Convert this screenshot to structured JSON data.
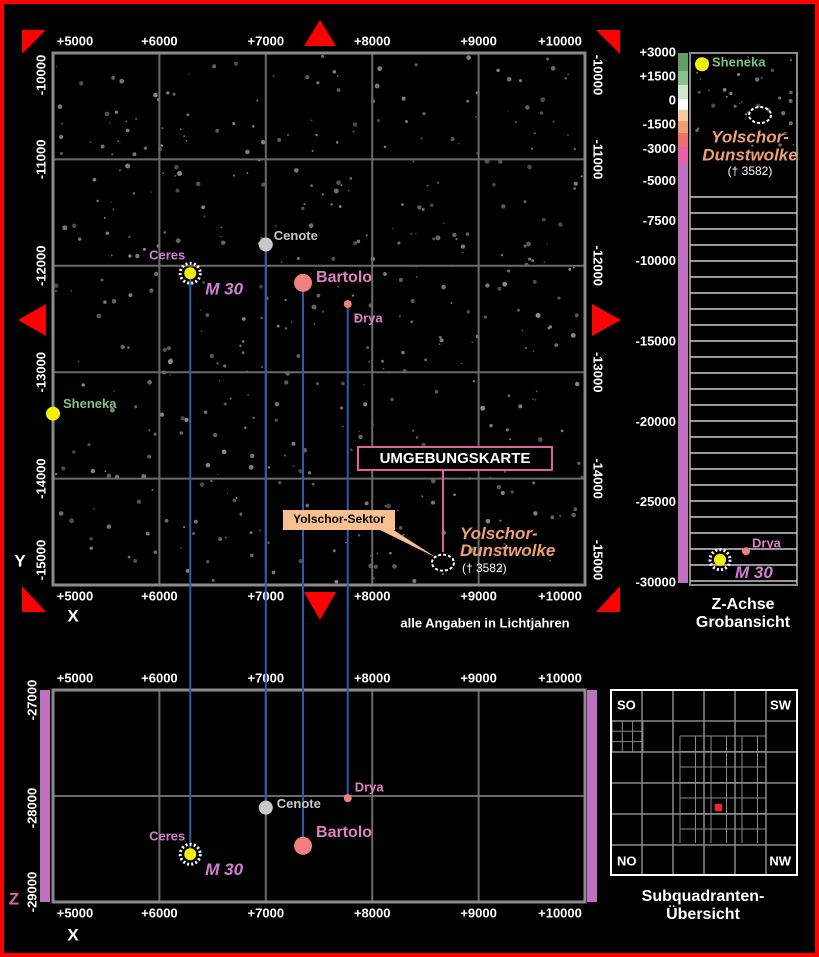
{
  "title": "UMGEBUNGSKARTE",
  "sector_label": "Yolschor-Sektor",
  "note": "alle Angaben in Lichtjahren",
  "axes": {
    "x_label": "X",
    "y_label": "Y",
    "z_label": "Z",
    "xlim": [
      5000,
      10000
    ],
    "xticks": [
      {
        "value": 5000,
        "label": "+5000"
      },
      {
        "value": 6000,
        "label": "+6000"
      },
      {
        "value": 7000,
        "label": "+7000"
      },
      {
        "value": 8000,
        "label": "+8000"
      },
      {
        "value": 9000,
        "label": "+9000"
      },
      {
        "value": 10000,
        "label": "+10000"
      }
    ],
    "ylim": [
      -10000,
      -15000
    ],
    "yticks": [
      -10000,
      -11000,
      -12000,
      -13000,
      -14000,
      -15000
    ],
    "zlim": [
      -27000,
      -29000
    ],
    "zticks": [
      -27000,
      -28000,
      -29000
    ]
  },
  "z_overview": {
    "title": [
      "Z-Achse",
      "Grobansicht"
    ],
    "zlim": [
      3000,
      -30000
    ],
    "zticks": [
      {
        "value": 3000,
        "label": "+3000"
      },
      {
        "value": 1500,
        "label": "+1500"
      },
      0,
      -1500,
      -3000,
      -5000,
      -7500,
      -10000,
      -15000,
      -20000,
      -25000,
      -30000
    ]
  },
  "objects": [
    {
      "labels": [
        "Ceres",
        "M 30"
      ],
      "x": 6290,
      "y": -12070,
      "z": -28550,
      "color": "#f5f000",
      "label_color": "#d080d0"
    },
    {
      "labels": [
        "Cenote"
      ],
      "x": 7000,
      "y": -11800,
      "z": -28110,
      "color": "#c8c8c8",
      "label_color": "#c8c8c8"
    },
    {
      "labels": [
        "Bartolo"
      ],
      "x": 7350,
      "y": -12160,
      "z": -28470,
      "color": "#f08080",
      "label_color": "#e080c0"
    },
    {
      "labels": [
        "Drya"
      ],
      "x": 7770,
      "y": -12360,
      "z": -28020,
      "color": "#f08080",
      "label_color": "#e080c0"
    },
    {
      "labels": [
        "Sheneka"
      ],
      "x": 5000,
      "y": -13390,
      "z": 2300,
      "color": "#f5f000",
      "label_color": "#80c080"
    },
    {
      "labels": [
        "Yolschor-",
        "Dunstwolke",
        "(† 3582)"
      ],
      "x": 8665,
      "y": -14790,
      "z": -860,
      "color": "#ffffff",
      "label_color": "#f0a070"
    }
  ],
  "subquadrants": {
    "title": [
      "Subquadranten-",
      "Übersicht"
    ],
    "corners": [
      "SO",
      "SW",
      "NO",
      "NW"
    ]
  }
}
